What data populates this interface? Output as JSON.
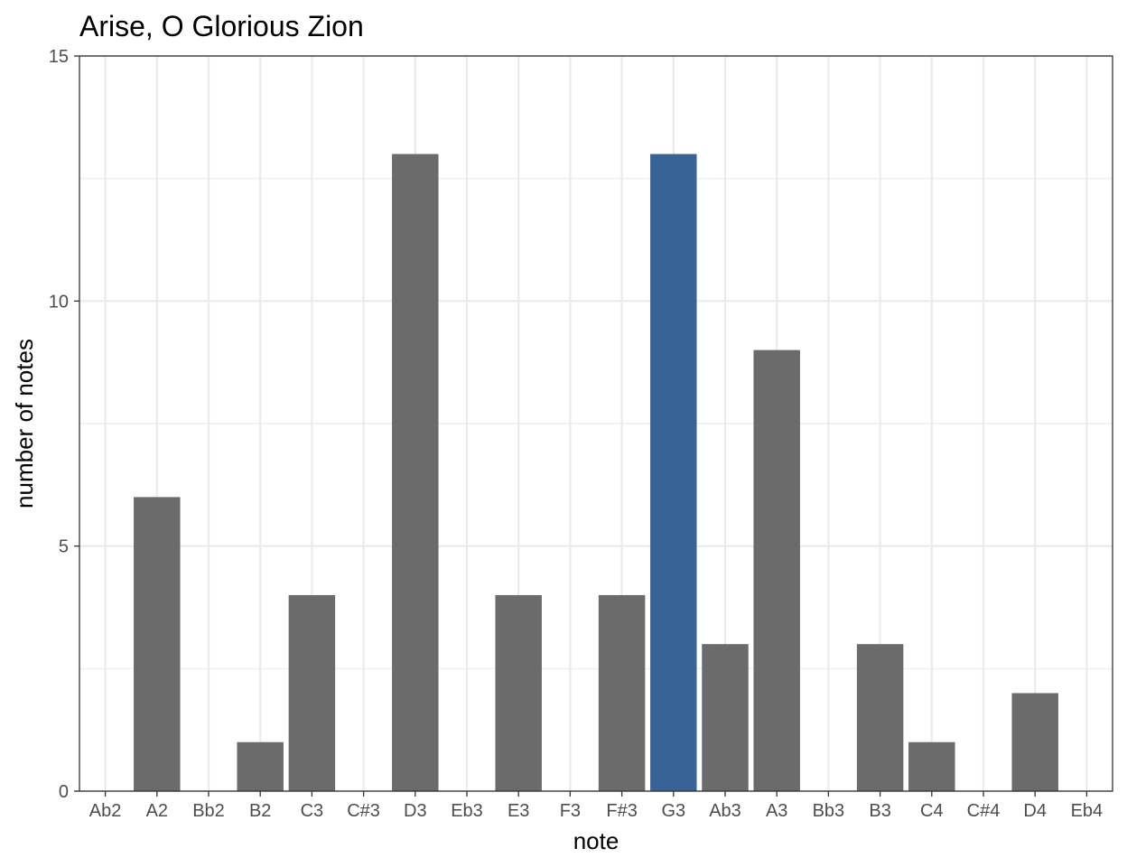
{
  "chart_data": {
    "type": "bar",
    "title": "Arise, O Glorious Zion",
    "xlabel": "note",
    "ylabel": "number of notes",
    "categories": [
      "Ab2",
      "A2",
      "Bb2",
      "B2",
      "C3",
      "C#3",
      "D3",
      "Eb3",
      "E3",
      "F3",
      "F#3",
      "G3",
      "Ab3",
      "A3",
      "Bb3",
      "B3",
      "C4",
      "C#4",
      "D4",
      "Eb4"
    ],
    "values": [
      0,
      6,
      0,
      1,
      4,
      0,
      13,
      0,
      4,
      0,
      4,
      13,
      3,
      9,
      0,
      3,
      1,
      0,
      2,
      0
    ],
    "highlight_category": "G3",
    "ylim": [
      0,
      15
    ],
    "yticks": [
      0,
      5,
      10,
      15
    ],
    "grid": true,
    "colors": {
      "bar": "#6b6b6b",
      "highlight": "#386397",
      "grid": "#ebebeb",
      "panel_border": "#333333"
    }
  }
}
